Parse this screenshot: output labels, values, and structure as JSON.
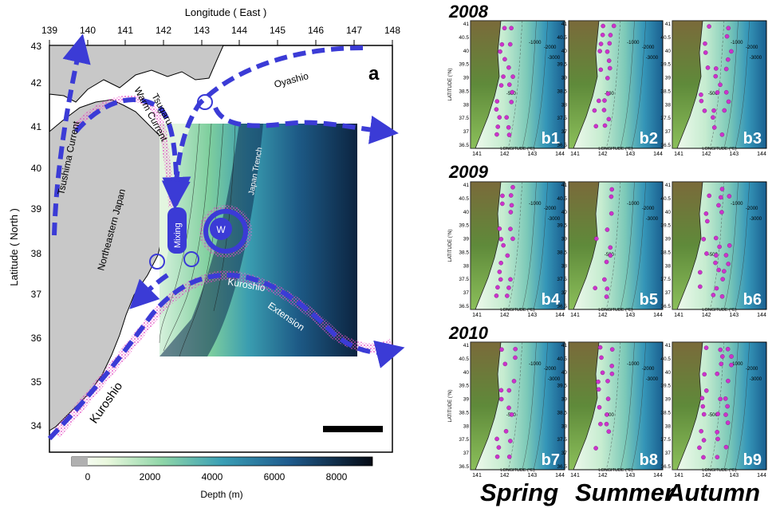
{
  "main_map": {
    "panel_label": "a",
    "x_axis_title": "Longitude ( East )",
    "y_axis_title": "Latitude ( North )",
    "lon_ticks": [
      "139",
      "140",
      "141",
      "142",
      "143",
      "144",
      "145",
      "146",
      "147",
      "148"
    ],
    "lat_ticks": [
      "43",
      "42",
      "41",
      "40",
      "39",
      "38",
      "37",
      "36",
      "35",
      "34"
    ],
    "labels": {
      "tsushima": "Tsushima Current",
      "tsugaru_1": "Tsugaru",
      "tsugaru_2": "Warm Current",
      "oyashio": "Oyashio",
      "northeastern_japan": "Northeastern Japan",
      "japan_trench": "Japan Trench",
      "mixing": "Mixing",
      "warm_eddy": "W",
      "kuroshio_ext_1": "Kuroshio",
      "kuroshio_ext_2": "Extension",
      "kuroshio": "Kuroshio"
    },
    "colorbar": {
      "title": "Depth (m)",
      "ticks": [
        "0",
        "2000",
        "4000",
        "6000",
        "8000"
      ]
    },
    "colors": {
      "land": "#c8c8c8",
      "current_arrow": "#3b3bd6",
      "warm_current_dots": "#e040c0"
    }
  },
  "years": [
    "2008",
    "2009",
    "2010"
  ],
  "seasons": [
    "Spring",
    "Summer",
    "Autumn"
  ],
  "small_panels": {
    "labels": [
      "b1",
      "b2",
      "b3",
      "b4",
      "b5",
      "b6",
      "b7",
      "b8",
      "b9"
    ],
    "lat_ticks": [
      "41",
      "40.5",
      "40",
      "39.5",
      "39",
      "38.5",
      "38",
      "37.5",
      "37",
      "36.5"
    ],
    "lon_ticks": [
      "141",
      "142",
      "143",
      "144"
    ],
    "lat_axis_title": "LATITUDE (°N)",
    "lon_axis_title": "LONGITUDE (°E)",
    "contours": [
      "-1000",
      "-2000",
      "-3000",
      "-500"
    ],
    "station_color": "#cc33cc"
  }
}
